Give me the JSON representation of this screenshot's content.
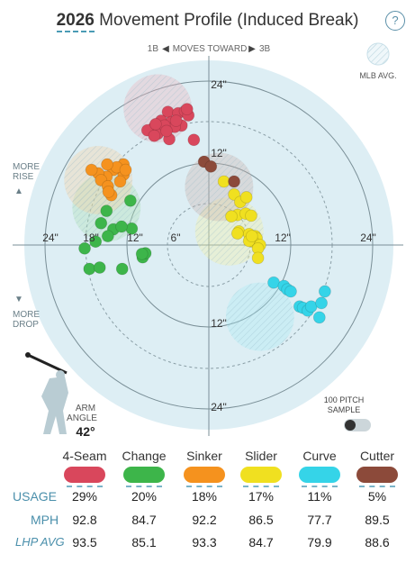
{
  "header": {
    "year": "2026",
    "title": "Movement Profile (Induced Break)",
    "help_label": "?"
  },
  "labels": {
    "direction_left": "1B",
    "direction_mid": "MOVES TOWARD",
    "direction_right": "3B",
    "mlb_avg": "MLB AVG.",
    "more_rise_1": "MORE",
    "more_rise_2": "RISE",
    "more_drop_1": "MORE",
    "more_drop_2": "DROP",
    "arm_angle_1": "ARM",
    "arm_angle_2": "ANGLE",
    "arm_angle_value": "42°",
    "sample_1": "100 PITCH",
    "sample_2": "SAMPLE"
  },
  "chart_data": {
    "type": "scatter",
    "title": "Movement Profile (Induced Break)",
    "ring_labels": [
      "6\"",
      "12\"",
      "18\"",
      "24\""
    ],
    "axis_range_inches": [
      -27,
      27
    ],
    "series": [
      {
        "name": "4-Seam",
        "color": "#d9475c",
        "avg_center": [
          -7.5,
          20
        ],
        "avg_radius": 5,
        "points": [
          [
            -6,
            19.5
          ],
          [
            -7,
            18.2
          ],
          [
            -8,
            17.3
          ],
          [
            -9,
            16.8
          ],
          [
            -7.5,
            16.3
          ],
          [
            -5.5,
            18
          ],
          [
            -4.5,
            19.3
          ],
          [
            -3.5,
            19.6
          ],
          [
            -3,
            19
          ],
          [
            -4,
            17.5
          ],
          [
            -5,
            17.3
          ],
          [
            -6.5,
            17.5
          ],
          [
            -7.8,
            17.7
          ],
          [
            -5.8,
            15.5
          ],
          [
            -8,
            16
          ],
          [
            -6.2,
            16.7
          ],
          [
            -4.8,
            18.2
          ],
          [
            -3.2,
            19.9
          ],
          [
            -2.2,
            15.4
          ]
        ]
      },
      {
        "name": "Change",
        "color": "#3db54a",
        "avg_center": [
          -15,
          5.5
        ],
        "avg_radius": 5,
        "points": [
          [
            -11.5,
            6.5
          ],
          [
            -15,
            5
          ],
          [
            -15.8,
            3.2
          ],
          [
            -14,
            2.3
          ],
          [
            -14.8,
            1.3
          ],
          [
            -11.3,
            2.4
          ],
          [
            -12.8,
            2.7
          ],
          [
            -16.6,
            0.5
          ],
          [
            -18.2,
            -0.5
          ],
          [
            -17.5,
            -3.5
          ],
          [
            -16,
            -3.3
          ],
          [
            -12.7,
            -3.5
          ],
          [
            -9.7,
            -1.8
          ],
          [
            -9.3,
            -1.2
          ],
          [
            -9.8,
            -1.3
          ]
        ]
      },
      {
        "name": "Sinker",
        "color": "#f5921e",
        "avg_center": [
          -16.2,
          9.5
        ],
        "avg_radius": 5,
        "points": [
          [
            -12.5,
            11.8
          ],
          [
            -12.5,
            10.3
          ],
          [
            -13,
            9.3
          ],
          [
            -14,
            11
          ],
          [
            -15,
            10
          ],
          [
            -16.2,
            10.5
          ],
          [
            -17.2,
            11
          ],
          [
            -15.8,
            9.5
          ],
          [
            -14.8,
            8.6
          ],
          [
            -14.3,
            7.3
          ],
          [
            -13.5,
            11.4
          ],
          [
            -14.9,
            11.8
          ],
          [
            -12.2,
            11
          ],
          [
            -14.7,
            7.8
          ]
        ]
      },
      {
        "name": "Slider",
        "color": "#f0e020",
        "avg_center": [
          3,
          2
        ],
        "avg_radius": 5,
        "points": [
          [
            2.2,
            9.3
          ],
          [
            3.7,
            7.4
          ],
          [
            4.6,
            6.3
          ],
          [
            5.5,
            7
          ],
          [
            4.2,
            4.4
          ],
          [
            3.3,
            4.2
          ],
          [
            5.4,
            4.6
          ],
          [
            6.2,
            4.3
          ],
          [
            4.4,
            2
          ],
          [
            5.9,
            1.6
          ],
          [
            4.2,
            1.7
          ],
          [
            6.8,
            1.3
          ],
          [
            7,
            1
          ],
          [
            6.5,
            0.5
          ],
          [
            5.9,
            0.6
          ],
          [
            7.5,
            0
          ],
          [
            7.2,
            -0.5
          ],
          [
            6.3,
            1.3
          ],
          [
            7.2,
            -1.9
          ]
        ]
      },
      {
        "name": "Curve",
        "color": "#35d4e8",
        "avg_center": [
          7.5,
          -10.5
        ],
        "avg_radius": 5,
        "points": [
          [
            9.5,
            -5.5
          ],
          [
            11,
            -6
          ],
          [
            11.5,
            -6.5
          ],
          [
            12,
            -6.8
          ],
          [
            13.3,
            -9
          ],
          [
            13.8,
            -9.2
          ],
          [
            14.5,
            -9.6
          ],
          [
            15,
            -9
          ],
          [
            16.5,
            -8.5
          ],
          [
            17,
            -6.8
          ],
          [
            16.2,
            -10.6
          ]
        ]
      },
      {
        "name": "Cutter",
        "color": "#8c4a3a",
        "avg_center": [
          1.5,
          8.5
        ],
        "avg_radius": 5,
        "points": [
          [
            -0.7,
            12.2
          ],
          [
            0.3,
            11.5
          ],
          [
            3.7,
            9.3
          ]
        ]
      }
    ]
  },
  "pitches": [
    {
      "name": "4-Seam",
      "color": "#d9475c",
      "usage": "29%",
      "mph": "92.8",
      "lhp_avg": "93.5"
    },
    {
      "name": "Change",
      "color": "#3db54a",
      "usage": "20%",
      "mph": "84.7",
      "lhp_avg": "85.1"
    },
    {
      "name": "Sinker",
      "color": "#f5921e",
      "usage": "18%",
      "mph": "92.2",
      "lhp_avg": "93.3"
    },
    {
      "name": "Slider",
      "color": "#f0e020",
      "usage": "17%",
      "mph": "86.5",
      "lhp_avg": "84.7"
    },
    {
      "name": "Curve",
      "color": "#35d4e8",
      "usage": "11%",
      "mph": "77.7",
      "lhp_avg": "79.9"
    },
    {
      "name": "Cutter",
      "color": "#8c4a3a",
      "usage": "5%",
      "mph": "89.5",
      "lhp_avg": "88.6"
    }
  ],
  "table_labels": {
    "usage": "USAGE",
    "mph": "MPH",
    "lhp_avg": "LHP AVG"
  }
}
